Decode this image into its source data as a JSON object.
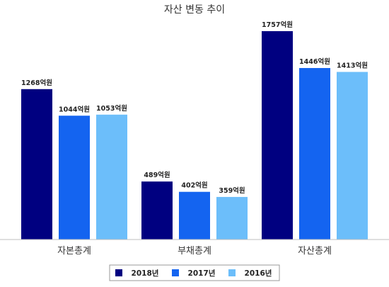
{
  "chart_data": {
    "type": "bar",
    "title": "자산 변동 추이",
    "categories": [
      "자본총계",
      "부채총계",
      "자산총계"
    ],
    "unit_suffix": "억원",
    "ylim": [
      0,
      1900
    ],
    "grid": false,
    "legend_position": "bottom",
    "series": [
      {
        "name": "2018년",
        "color": "#000080",
        "values": [
          1268,
          489,
          1757
        ]
      },
      {
        "name": "2017년",
        "color": "#1464F0",
        "values": [
          1044,
          402,
          1446
        ]
      },
      {
        "name": "2016년",
        "color": "#6CBEFA",
        "values": [
          1053,
          359,
          1413
        ]
      }
    ]
  }
}
